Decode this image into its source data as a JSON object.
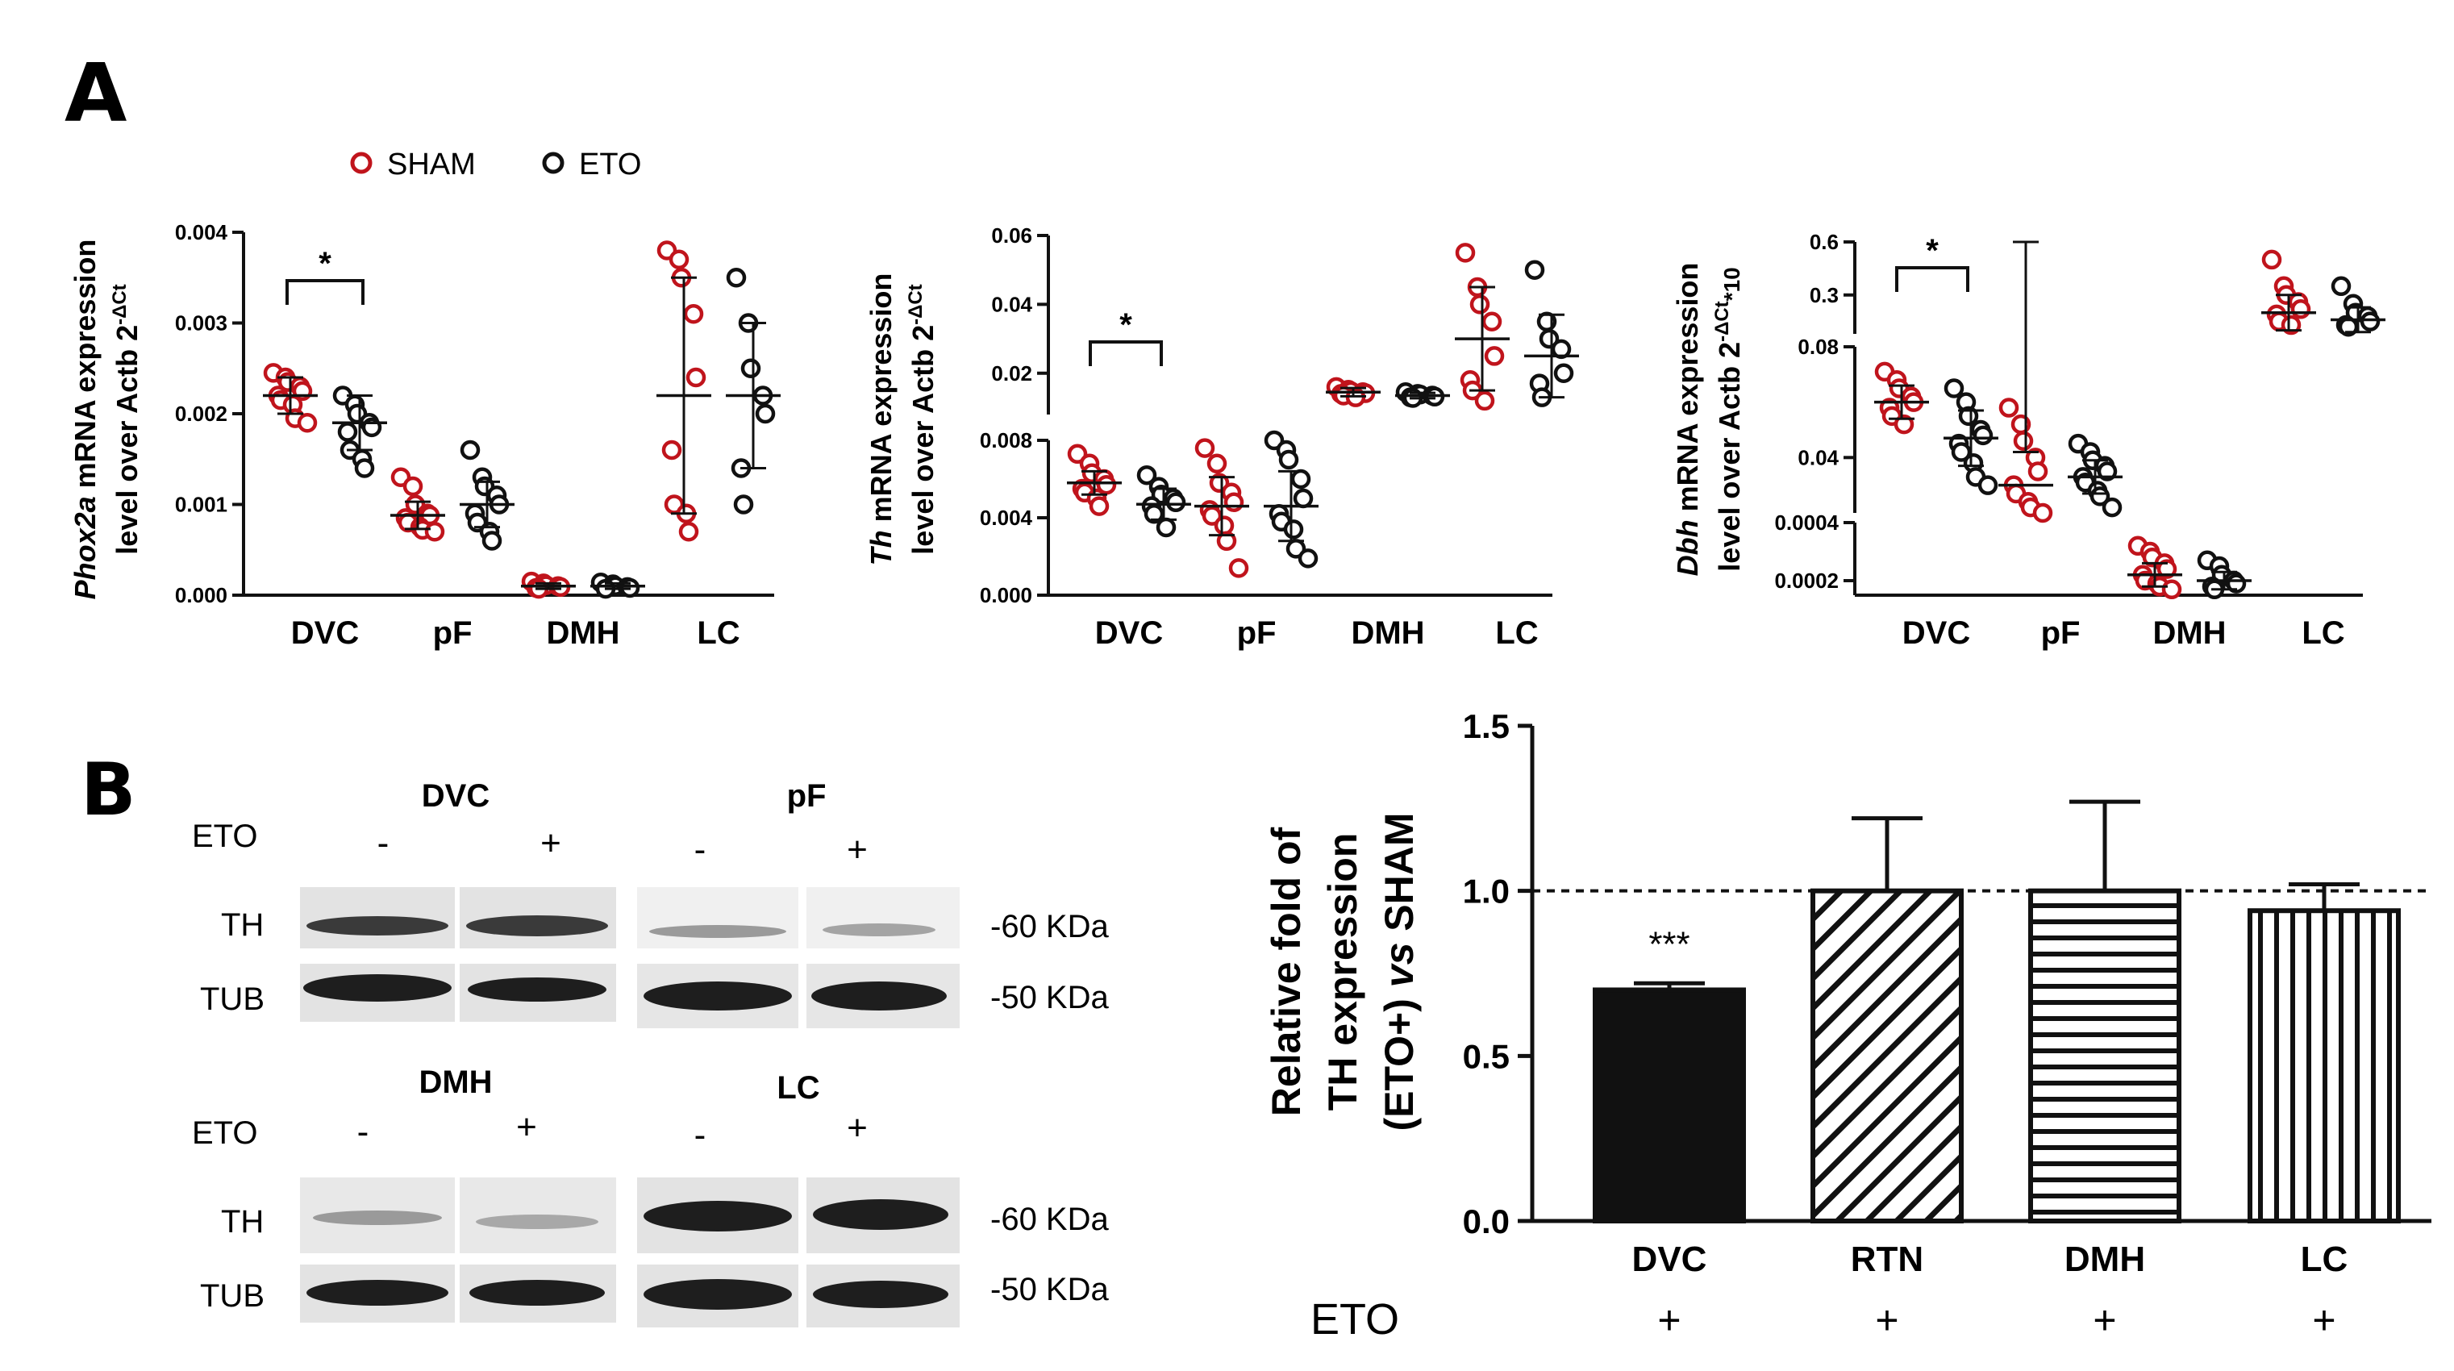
{
  "panel_labels": [
    "A",
    "B"
  ],
  "legend": {
    "items": [
      {
        "label": "SHAM",
        "color": "#c0141c"
      },
      {
        "label": "ETO",
        "color": "#111111"
      }
    ]
  },
  "colors": {
    "sham": "#c0141c",
    "eto": "#111111",
    "bar": "#111111"
  },
  "chart_data": [
    {
      "type": "scatter",
      "title": "",
      "ylabel_gene": "Phox2a",
      "ylabel_rest": " mRNA expression",
      "ylabel_line2": "level over Actb 2",
      "ylabel_sup": "-ΔCt",
      "ylim": [
        0,
        0.004
      ],
      "yticks": [
        "0.000",
        "0.001",
        "0.002",
        "0.003",
        "0.004"
      ],
      "categories": [
        "DVC",
        "pF",
        "DMH",
        "LC"
      ],
      "series": [
        {
          "name": "SHAM",
          "color": "#c0141c",
          "groups": [
            {
              "mean": 0.0022,
              "sd": 0.0002,
              "points": [
                0.00245,
                0.0024,
                0.00235,
                0.0023,
                0.00225,
                0.0022,
                0.00215,
                0.0021,
                0.00195,
                0.0019
              ]
            },
            {
              "mean": 0.00088,
              "sd": 0.00015,
              "points": [
                0.0013,
                0.0012,
                0.001,
                0.0009,
                0.00088,
                0.00085,
                0.0008,
                0.00075,
                0.00072,
                0.0007
              ]
            },
            {
              "mean": 0.0001,
              "sd": 3e-05,
              "points": [
                0.00015,
                0.00013,
                0.00011,
                0.0001,
                9e-05,
                8e-05,
                7e-05
              ]
            },
            {
              "mean": 0.0022,
              "sd": 0.0013,
              "points": [
                0.0038,
                0.0037,
                0.0035,
                0.0031,
                0.0024,
                0.0016,
                0.001,
                0.0009,
                0.0007
              ]
            }
          ]
        },
        {
          "name": "ETO",
          "color": "#111111",
          "groups": [
            {
              "mean": 0.0019,
              "sd": 0.0003,
              "points": [
                0.0022,
                0.0021,
                0.002,
                0.0019,
                0.00185,
                0.0018,
                0.0016,
                0.0015,
                0.0014
              ]
            },
            {
              "mean": 0.001,
              "sd": 0.00025,
              "points": [
                0.0016,
                0.0013,
                0.0012,
                0.0011,
                0.001,
                0.0009,
                0.0008,
                0.0007,
                0.0006
              ]
            },
            {
              "mean": 0.0001,
              "sd": 3e-05,
              "points": [
                0.00014,
                0.00012,
                0.0001,
                9e-05,
                8e-05,
                7e-05
              ]
            },
            {
              "mean": 0.0022,
              "sd": 0.0008,
              "points": [
                0.0035,
                0.003,
                0.0025,
                0.0022,
                0.002,
                0.0014,
                0.001
              ]
            }
          ]
        }
      ],
      "annotations": [
        {
          "text": "*",
          "between": [
            "DVC-SHAM",
            "DVC-ETO"
          ]
        }
      ]
    },
    {
      "type": "scatter",
      "title": "",
      "ylabel_gene": "Th",
      "ylabel_rest": " mRNA expression",
      "ylabel_line2": "level over Actb 2",
      "ylabel_sup": "-ΔCt",
      "scale": "broken",
      "ylim_lower": [
        0,
        0.008
      ],
      "ylim_upper": [
        0.008,
        0.06
      ],
      "yticks_lower": [
        "0.000",
        "0.004",
        "0.008"
      ],
      "yticks_upper": [
        "0.02",
        "0.04",
        "0.06"
      ],
      "categories": [
        "DVC",
        "pF",
        "DMH",
        "LC"
      ],
      "series": [
        {
          "name": "SHAM",
          "color": "#c0141c",
          "groups": [
            {
              "mean": 0.0058,
              "sd": 0.0006,
              "points": [
                0.0073,
                0.0068,
                0.0063,
                0.006,
                0.0057,
                0.0055,
                0.0053,
                0.005,
                0.0046
              ]
            },
            {
              "mean": 0.0046,
              "sd": 0.0015,
              "points": [
                0.0076,
                0.0068,
                0.0058,
                0.0053,
                0.0048,
                0.0044,
                0.0041,
                0.0036,
                0.0028,
                0.0014
              ]
            },
            {
              "mean": 0.0145,
              "sd": 0.0012,
              "points": [
                0.016,
                0.0152,
                0.0148,
                0.0145,
                0.0142,
                0.014,
                0.0135,
                0.013
              ]
            },
            {
              "mean": 0.03,
              "sd": 0.015,
              "points": [
                0.055,
                0.045,
                0.04,
                0.035,
                0.025,
                0.018,
                0.015,
                0.012
              ]
            }
          ]
        },
        {
          "name": "ETO",
          "color": "#111111",
          "groups": [
            {
              "mean": 0.0047,
              "sd": 0.0008,
              "points": [
                0.0062,
                0.0056,
                0.0052,
                0.005,
                0.0048,
                0.0046,
                0.0042,
                0.0035
              ]
            },
            {
              "mean": 0.0046,
              "sd": 0.0018,
              "points": [
                0.008,
                0.0075,
                0.007,
                0.006,
                0.005,
                0.0042,
                0.0038,
                0.0034,
                0.0024,
                0.0019
              ]
            },
            {
              "mean": 0.0135,
              "sd": 0.0008,
              "points": [
                0.0145,
                0.014,
                0.0138,
                0.0135,
                0.0132,
                0.013,
                0.0128
              ]
            },
            {
              "mean": 0.025,
              "sd": 0.012,
              "points": [
                0.05,
                0.035,
                0.03,
                0.027,
                0.02,
                0.017,
                0.013
              ]
            }
          ]
        }
      ],
      "annotations": [
        {
          "text": "*",
          "between": [
            "DVC-SHAM",
            "DVC-ETO"
          ]
        }
      ]
    },
    {
      "type": "scatter",
      "title": "",
      "ylabel_gene": "Dbh",
      "ylabel_rest": " mRNA expression",
      "ylabel_line2": "level over Actb 2",
      "ylabel_sup": "-ΔCt",
      "ylabel_suffix": "*10",
      "scale": "broken-three-segment",
      "ylim_lower": [
        0.00015,
        0.0004
      ],
      "ylim_middle": [
        0.02,
        0.08
      ],
      "ylim_upper": [
        0.08,
        0.6
      ],
      "yticks_lower": [
        "0.0002",
        "0.0004"
      ],
      "yticks_middle": [
        "0.04",
        "0.08"
      ],
      "yticks_upper": [
        "0.3",
        "0.6"
      ],
      "categories": [
        "DVC",
        "pF",
        "DMH",
        "LC"
      ],
      "series": [
        {
          "name": "SHAM",
          "color": "#c0141c",
          "groups": [
            {
              "mean": 0.06,
              "sd": 0.006,
              "points": [
                0.071,
                0.068,
                0.065,
                0.062,
                0.06,
                0.058,
                0.055,
                0.052
              ]
            },
            {
              "mean": 0.03,
              "sd": 0.012,
              "points": [
                0.058,
                0.052,
                0.046,
                0.04,
                0.035,
                0.03,
                0.027,
                0.024,
                0.022,
                0.02
              ]
            },
            {
              "mean": 0.00022,
              "sd": 4e-05,
              "points": [
                0.00032,
                0.0003,
                0.00028,
                0.00026,
                0.00024,
                0.00022,
                0.0002,
                0.00019,
                0.00018,
                0.00017
              ]
            },
            {
              "mean": 0.2,
              "sd": 0.1,
              "points": [
                0.5,
                0.35,
                0.3,
                0.26,
                0.22,
                0.19,
                0.15,
                0.13
              ]
            }
          ]
        },
        {
          "name": "ETO",
          "color": "#111111",
          "groups": [
            {
              "mean": 0.047,
              "sd": 0.01,
              "points": [
                0.065,
                0.06,
                0.055,
                0.05,
                0.048,
                0.045,
                0.042,
                0.038,
                0.033,
                0.03
              ]
            },
            {
              "mean": 0.033,
              "sd": 0.006,
              "points": [
                0.045,
                0.042,
                0.039,
                0.037,
                0.035,
                0.033,
                0.031,
                0.028,
                0.026,
                0.022
              ]
            },
            {
              "mean": 0.0002,
              "sd": 3e-05,
              "points": [
                0.00027,
                0.00025,
                0.00022,
                0.0002,
                0.00019,
                0.00018,
                0.00017
              ]
            },
            {
              "mean": 0.16,
              "sd": 0.07,
              "points": [
                0.35,
                0.25,
                0.2,
                0.18,
                0.15,
                0.13,
                0.12
              ]
            }
          ]
        }
      ],
      "annotations": [
        {
          "text": "*",
          "between": [
            "DVC-SHAM",
            "DVC-ETO"
          ]
        }
      ]
    },
    {
      "type": "bar",
      "title": "",
      "ylabel_lines": [
        "Relative fold of",
        "TH expression"
      ],
      "ylabel_line3_a": "(ETO+) ",
      "ylabel_line3_b": "vs",
      "ylabel_line3_c": " SHAM",
      "ylim": [
        0,
        1.5
      ],
      "yticks": [
        "0.0",
        "0.5",
        "1.0",
        "1.5"
      ],
      "categories": [
        "DVC",
        "RTN",
        "DMH",
        "LC"
      ],
      "values": [
        0.7,
        1.0,
        1.0,
        0.94
      ],
      "errors": [
        0.02,
        0.22,
        0.27,
        0.08
      ],
      "fills": [
        "solid",
        "diagonal-lines",
        "horizontal-lines",
        "vertical-lines"
      ],
      "reference_line": 1.0,
      "annotations": [
        {
          "text": "***",
          "category": "DVC"
        }
      ],
      "row_label": "ETO",
      "row_values": [
        "+",
        "+",
        "+",
        "+"
      ]
    }
  ],
  "western_blot": {
    "eto_label": "ETO",
    "blocks": [
      {
        "region": "DVC",
        "signs": [
          "-",
          "+"
        ]
      },
      {
        "region": "pF",
        "signs": [
          "-",
          "+"
        ]
      },
      {
        "region": "DMH",
        "signs": [
          "-",
          "+"
        ]
      },
      {
        "region": "LC",
        "signs": [
          "-",
          "+"
        ]
      }
    ],
    "rows": [
      "TH",
      "TUB"
    ],
    "markers": [
      "-60 KDa",
      "-50 KDa"
    ]
  }
}
